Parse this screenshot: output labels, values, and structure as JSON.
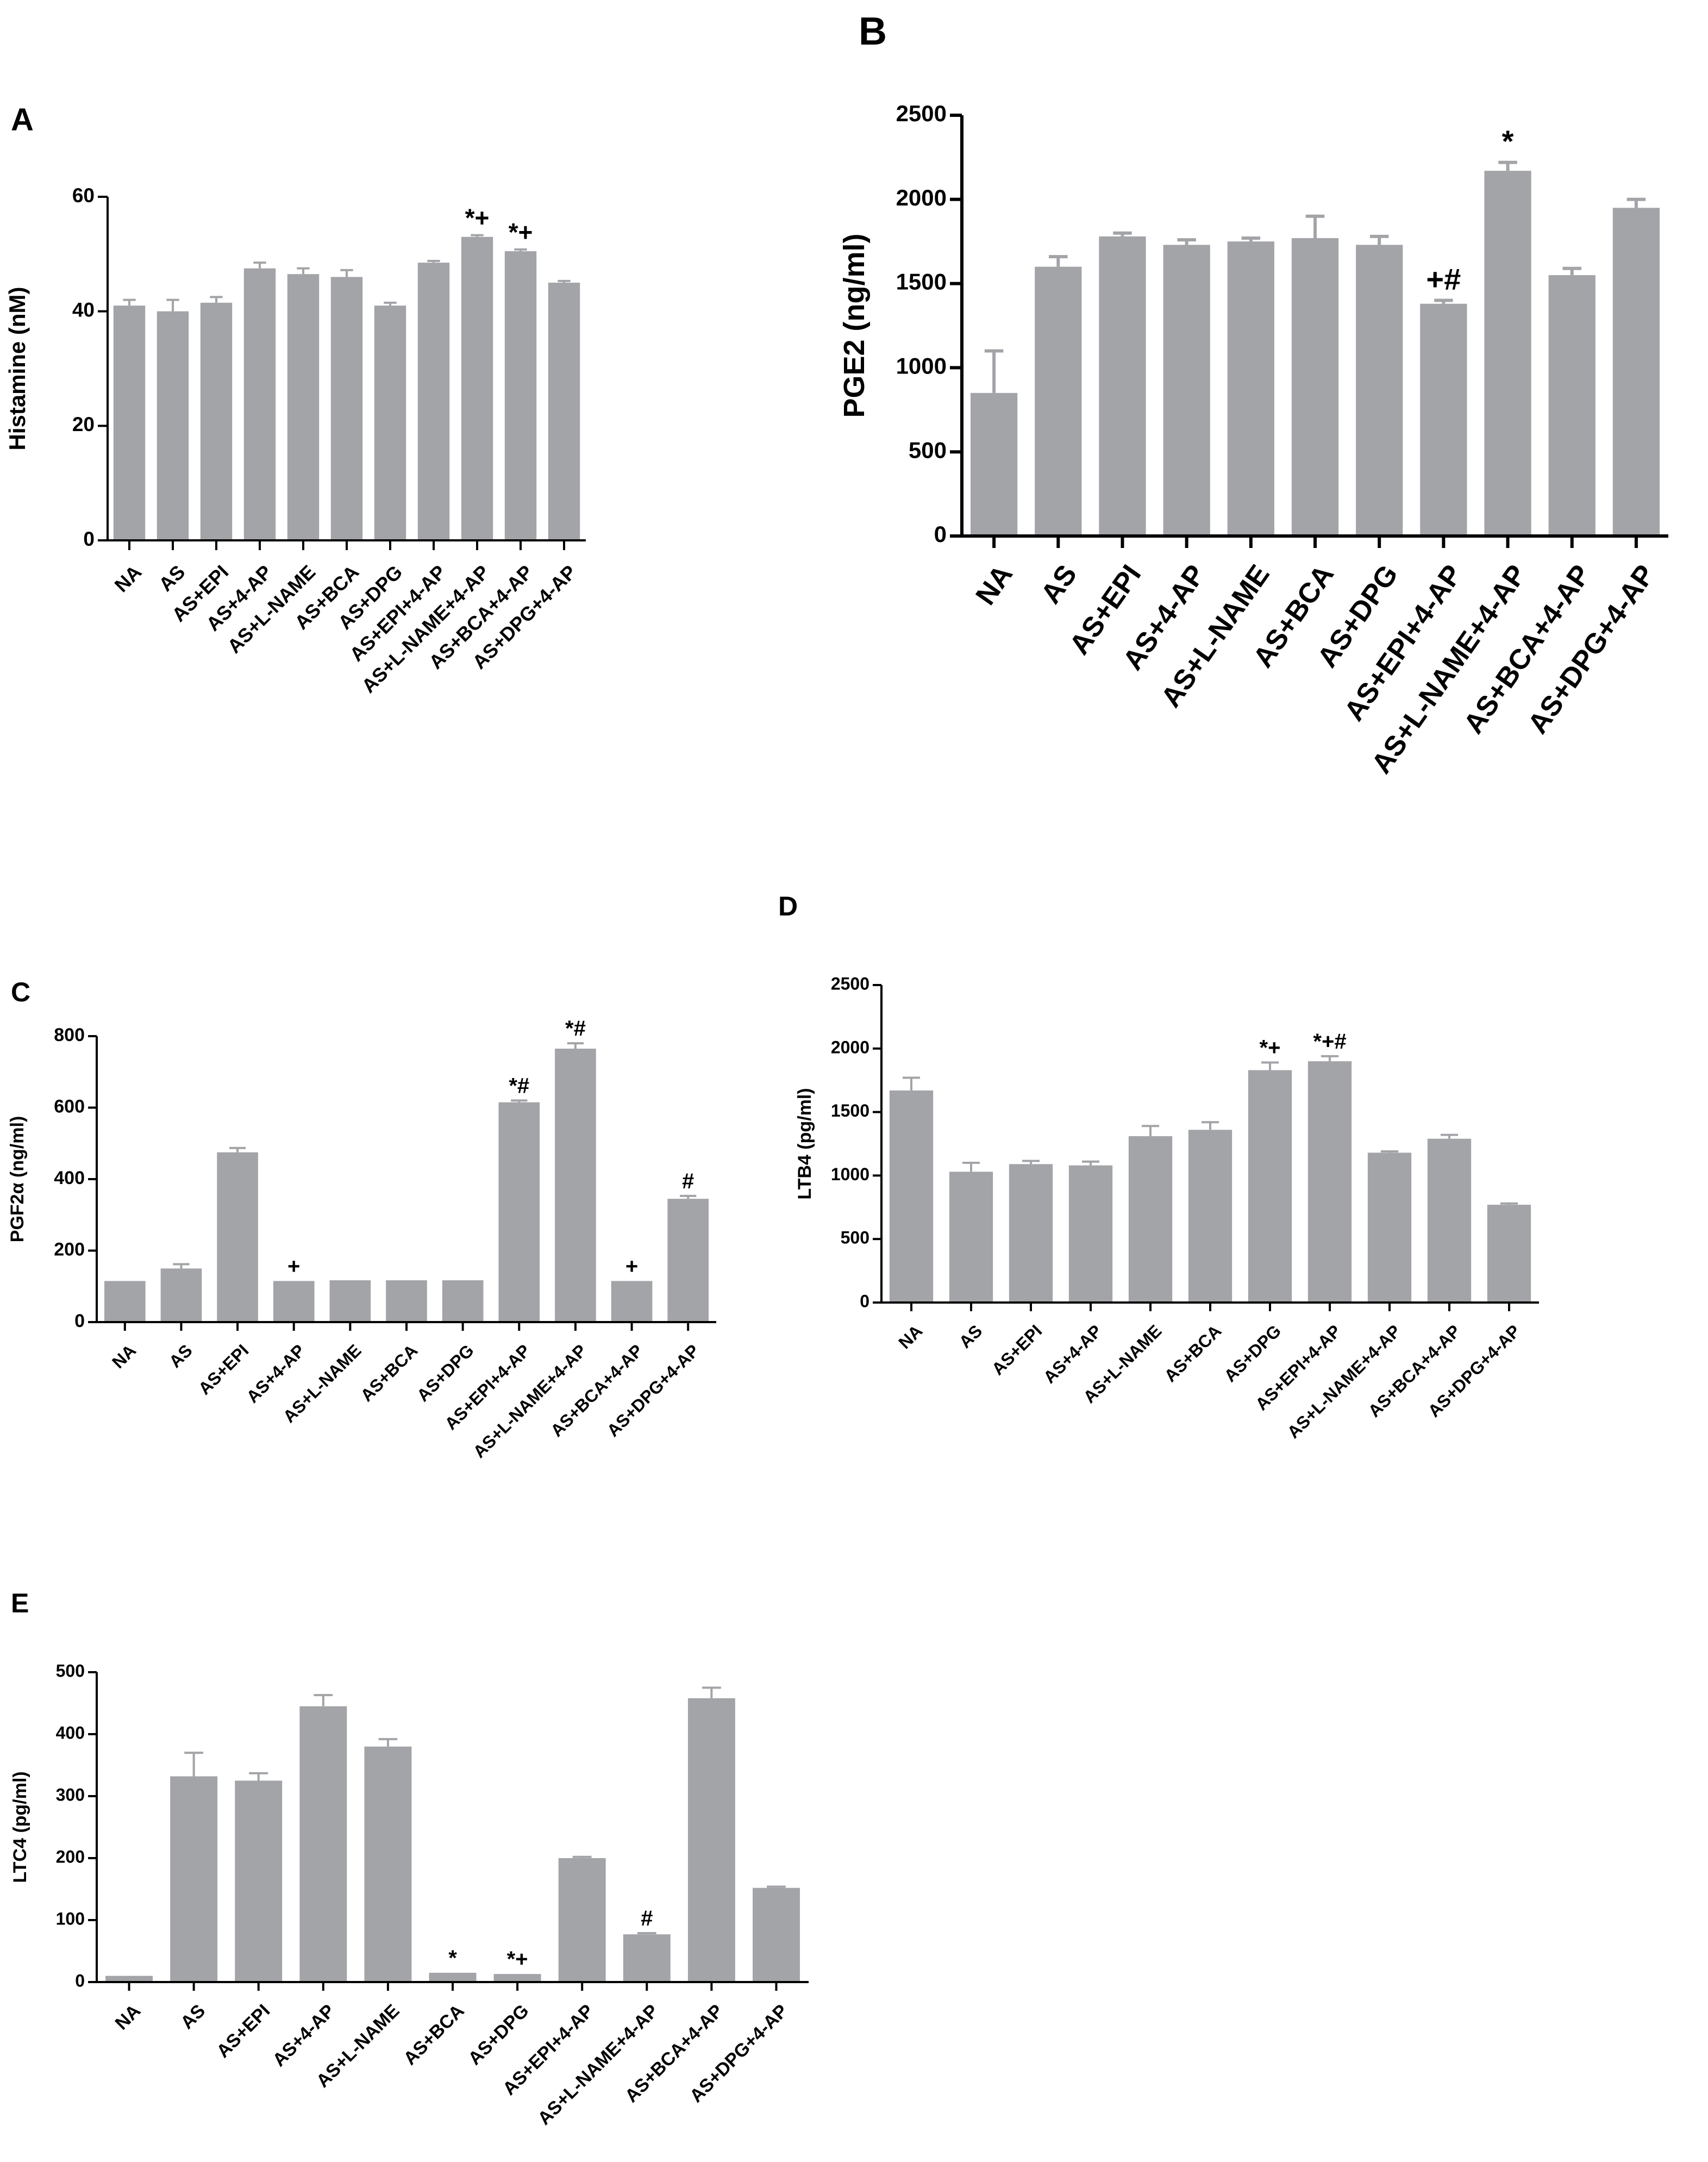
{
  "figure": {
    "colors": {
      "bar": "#a3a4a8",
      "axis": "#000000",
      "background": "#ffffff"
    }
  },
  "chart_data": [
    {
      "id": "A",
      "type": "bar",
      "panel_label": "A",
      "title": "",
      "xlabel": "",
      "ylabel": "Histamine (nM)",
      "ylim": [
        0,
        60
      ],
      "yticks": [
        0,
        20,
        40,
        60
      ],
      "ytick_labels": [
        "0",
        "20",
        "40",
        "60"
      ],
      "categories": [
        "NA",
        "AS",
        "AS+EPI",
        "AS+4-AP",
        "AS+L-NAME",
        "AS+BCA",
        "AS+DPG",
        "AS+EPI+4-AP",
        "AS+L-NAME+4-AP",
        "AS+BCA+4-AP",
        "AS+DPG+4-AP"
      ],
      "values": [
        41,
        40,
        41.5,
        47.5,
        46.5,
        46,
        41,
        48.5,
        53,
        50.5,
        45
      ],
      "errors": [
        1,
        2,
        1,
        1,
        1,
        1.2,
        0.5,
        0.3,
        0.3,
        0.3,
        0.3
      ],
      "annotations": [
        "",
        "",
        "",
        "",
        "",
        "",
        "",
        "",
        "*+",
        "*+",
        ""
      ]
    },
    {
      "id": "B",
      "type": "bar",
      "panel_label": "B",
      "title": "",
      "xlabel": "",
      "ylabel": "PGE2 (ng/ml)",
      "ylim": [
        0,
        2500
      ],
      "yticks": [
        0,
        500,
        1000,
        1500,
        2000,
        2500
      ],
      "ytick_labels": [
        "0",
        "500",
        "1000",
        "1500",
        "2000",
        "2500"
      ],
      "categories": [
        "NA",
        "AS",
        "AS+EPI",
        "AS+4-AP",
        "AS+L-NAME",
        "AS+BCA",
        "AS+DPG",
        "AS+EPI+4-AP",
        "AS+L-NAME+4-AP",
        "AS+BCA+4-AP",
        "AS+DPG+4-AP"
      ],
      "values": [
        850,
        1600,
        1780,
        1730,
        1750,
        1770,
        1730,
        1380,
        2170,
        1550,
        1950
      ],
      "errors": [
        250,
        60,
        20,
        30,
        20,
        130,
        50,
        20,
        50,
        40,
        50
      ],
      "annotations": [
        "",
        "",
        "",
        "",
        "",
        "",
        "",
        "+#",
        "*",
        "",
        ""
      ]
    },
    {
      "id": "C",
      "type": "bar",
      "panel_label": "C",
      "title": "",
      "xlabel": "",
      "ylabel": "PGF2α (ng/ml)",
      "ylim": [
        0,
        800
      ],
      "yticks": [
        0,
        200,
        400,
        600,
        800
      ],
      "ytick_labels": [
        "0",
        "200",
        "400",
        "600",
        "800"
      ],
      "categories": [
        "NA",
        "AS",
        "AS+EPI",
        "AS+4-AP",
        "AS+L-NAME",
        "AS+BCA",
        "AS+DPG",
        "AS+EPI+4-AP",
        "AS+L-NAME+4-AP",
        "AS+BCA+4-AP",
        "AS+DPG+4-AP"
      ],
      "values": [
        115,
        150,
        475,
        115,
        117,
        117,
        117,
        615,
        765,
        115,
        345
      ],
      "errors": [
        0,
        12,
        12,
        0,
        0,
        0,
        0,
        5,
        15,
        0,
        8
      ],
      "annotations": [
        "",
        "",
        "",
        "+",
        "",
        "",
        "",
        "*#",
        "*#",
        "+",
        "#"
      ]
    },
    {
      "id": "D",
      "type": "bar",
      "panel_label": "D",
      "title": "",
      "xlabel": "",
      "ylabel": "LTB4 (pg/ml)",
      "ylim": [
        0,
        2500
      ],
      "yticks": [
        0,
        500,
        1000,
        1500,
        2000,
        2500
      ],
      "ytick_labels": [
        "0",
        "500",
        "1000",
        "1500",
        "2000",
        "2500"
      ],
      "categories": [
        "NA",
        "AS",
        "AS+EPI",
        "AS+4-AP",
        "AS+L-NAME",
        "AS+BCA",
        "AS+DPG",
        "AS+EPI+4-AP",
        "AS+L-NAME+4-AP",
        "AS+BCA+4-AP",
        "AS+DPG+4-AP"
      ],
      "values": [
        1670,
        1030,
        1090,
        1080,
        1310,
        1360,
        1830,
        1900,
        1180,
        1290,
        770
      ],
      "errors": [
        100,
        70,
        25,
        30,
        80,
        60,
        60,
        40,
        10,
        30,
        10
      ],
      "annotations": [
        "",
        "",
        "",
        "",
        "",
        "",
        "*+",
        "*+#",
        "",
        "",
        ""
      ]
    },
    {
      "id": "E",
      "type": "bar",
      "panel_label": "E",
      "title": "",
      "xlabel": "",
      "ylabel": "LTC4 (pg/ml)",
      "ylim": [
        0,
        500
      ],
      "yticks": [
        0,
        100,
        200,
        300,
        400,
        500
      ],
      "ytick_labels": [
        "0",
        "100",
        "200",
        "300",
        "400",
        "500"
      ],
      "categories": [
        "NA",
        "AS",
        "AS+EPI",
        "AS+4-AP",
        "AS+L-NAME",
        "AS+BCA",
        "AS+DPG",
        "AS+EPI+4-AP",
        "AS+L-NAME+4-AP",
        "AS+BCA+4-AP",
        "AS+DPG+4-AP"
      ],
      "values": [
        10,
        332,
        325,
        445,
        380,
        15,
        13,
        200,
        77,
        458,
        152
      ],
      "errors": [
        0,
        38,
        12,
        18,
        12,
        0,
        0,
        2,
        2,
        17,
        2
      ],
      "annotations": [
        "",
        "",
        "",
        "",
        "",
        "*",
        "*+",
        "",
        "#",
        "",
        ""
      ]
    }
  ]
}
